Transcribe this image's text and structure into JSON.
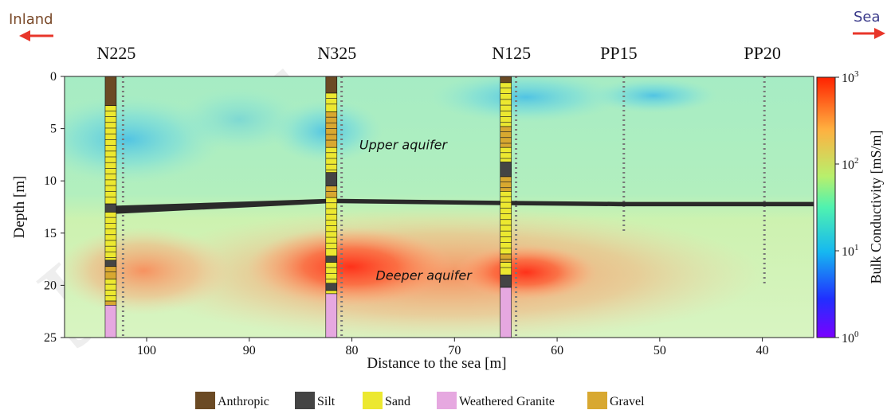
{
  "chart_data": {
    "type": "heatmap",
    "title": "",
    "xlabel": "Distance to the sea [m]",
    "ylabel": "Depth [m]",
    "xlim": [
      108,
      35
    ],
    "ylim": [
      0,
      25
    ],
    "x_ticks": [
      100,
      90,
      80,
      70,
      60,
      50,
      40
    ],
    "y_ticks": [
      0,
      5,
      10,
      15,
      20,
      25
    ],
    "direction_labels": {
      "left": "Inland",
      "right": "Sea"
    },
    "colorbar": {
      "label": "Bulk Conductivity [mS/m]",
      "scale": "log",
      "range": [
        1,
        1000
      ],
      "tick_labels": [
        {
          "value": 1000,
          "base": "10",
          "exp": "3"
        },
        {
          "value": 100,
          "base": "10",
          "exp": "2"
        },
        {
          "value": 10,
          "base": "10",
          "exp": "1"
        },
        {
          "value": 1,
          "base": "10",
          "exp": "0"
        }
      ],
      "colors": [
        "#7a00ff",
        "#2030ff",
        "#16b8f0",
        "#4ff2b0",
        "#b8f06c",
        "#ffb040",
        "#ff2200"
      ]
    },
    "conductivity_zones": [
      {
        "name": "Upper aquifer",
        "depth_range": [
          0,
          12
        ],
        "conductivity_mS_m": 25
      },
      {
        "name": "Deeper aquifer",
        "depth_range": [
          15,
          25
        ],
        "conductivity_mS_m": 250
      }
    ],
    "annotations": [
      {
        "text": "Upper aquifer",
        "x": 75,
        "depth": 6.5
      },
      {
        "text": "Deeper aquifer",
        "x": 73,
        "depth": 19
      }
    ],
    "boundary_line": {
      "x": [
        104,
        82,
        65,
        54,
        40,
        35
      ],
      "depth": [
        12.6,
        11.9,
        12.1,
        12.2,
        12.2,
        12.2
      ]
    },
    "boreholes": [
      {
        "name": "N225",
        "x": 103.5,
        "probe_x": 102.3,
        "probe_depth": [
          0,
          25
        ],
        "layers": [
          {
            "top": 0,
            "bottom": 2.8,
            "material": "Anthropic"
          },
          {
            "top": 2.8,
            "bottom": 12.2,
            "material": "Sand"
          },
          {
            "top": 12.2,
            "bottom": 13.0,
            "material": "Silt"
          },
          {
            "top": 13.0,
            "bottom": 17.6,
            "material": "Sand"
          },
          {
            "top": 17.6,
            "bottom": 18.2,
            "material": "Silt"
          },
          {
            "top": 18.2,
            "bottom": 19.4,
            "material": "Gravel"
          },
          {
            "top": 19.4,
            "bottom": 21.5,
            "material": "Sand"
          },
          {
            "top": 21.5,
            "bottom": 21.9,
            "material": "Gravel"
          },
          {
            "top": 21.9,
            "bottom": 25,
            "material": "Weathered Granite"
          }
        ]
      },
      {
        "name": "N325",
        "x": 82,
        "probe_x": 81,
        "probe_depth": [
          0,
          25
        ],
        "layers": [
          {
            "top": 0,
            "bottom": 1.6,
            "material": "Anthropic"
          },
          {
            "top": 1.6,
            "bottom": 3.4,
            "material": "Sand"
          },
          {
            "top": 3.4,
            "bottom": 6.8,
            "material": "Gravel"
          },
          {
            "top": 6.8,
            "bottom": 9.2,
            "material": "Sand"
          },
          {
            "top": 9.2,
            "bottom": 10.5,
            "material": "Silt"
          },
          {
            "top": 10.5,
            "bottom": 11.6,
            "material": "Gravel"
          },
          {
            "top": 11.6,
            "bottom": 17.2,
            "material": "Sand"
          },
          {
            "top": 17.2,
            "bottom": 17.8,
            "material": "Silt"
          },
          {
            "top": 17.8,
            "bottom": 19.8,
            "material": "Sand"
          },
          {
            "top": 19.8,
            "bottom": 20.5,
            "material": "Silt"
          },
          {
            "top": 20.5,
            "bottom": 20.8,
            "material": "Sand"
          },
          {
            "top": 20.8,
            "bottom": 25,
            "material": "Weathered Granite"
          }
        ]
      },
      {
        "name": "N125",
        "x": 65,
        "probe_x": 64,
        "probe_depth": [
          0,
          25
        ],
        "layers": [
          {
            "top": 0,
            "bottom": 0.6,
            "material": "Anthropic"
          },
          {
            "top": 0.6,
            "bottom": 4.8,
            "material": "Sand"
          },
          {
            "top": 4.8,
            "bottom": 6.8,
            "material": "Gravel"
          },
          {
            "top": 6.8,
            "bottom": 8.2,
            "material": "Sand"
          },
          {
            "top": 8.2,
            "bottom": 9.6,
            "material": "Silt"
          },
          {
            "top": 9.6,
            "bottom": 11.0,
            "material": "Gravel"
          },
          {
            "top": 11.0,
            "bottom": 17.0,
            "material": "Sand"
          },
          {
            "top": 17.0,
            "bottom": 17.8,
            "material": "Gravel"
          },
          {
            "top": 17.8,
            "bottom": 19.0,
            "material": "Sand"
          },
          {
            "top": 19.0,
            "bottom": 20.2,
            "material": "Silt"
          },
          {
            "top": 20.2,
            "bottom": 25,
            "material": "Weathered Granite"
          }
        ]
      },
      {
        "name": "PP15",
        "x": 54,
        "probe_x": 53.5,
        "probe_depth": [
          0,
          15
        ]
      },
      {
        "name": "PP20",
        "x": 40,
        "probe_x": 39.8,
        "probe_depth": [
          0,
          20
        ]
      }
    ],
    "legend": {
      "placement": "bottom",
      "entries": [
        {
          "label": "Anthropic",
          "color": "#6b4a24"
        },
        {
          "label": "Silt",
          "color": "#444444"
        },
        {
          "label": "Sand",
          "color": "#ece830"
        },
        {
          "label": "Weathered Granite",
          "color": "#e6a8e0"
        },
        {
          "label": "Gravel",
          "color": "#d8a830"
        }
      ]
    }
  },
  "watermark": {
    "text": "Journal"
  },
  "colors": {
    "inland": "#7a4a2a",
    "sea": "#3a3a8a",
    "arrow": "#e8362a",
    "probe": "#777777",
    "boundary": "#2a2a2a"
  }
}
